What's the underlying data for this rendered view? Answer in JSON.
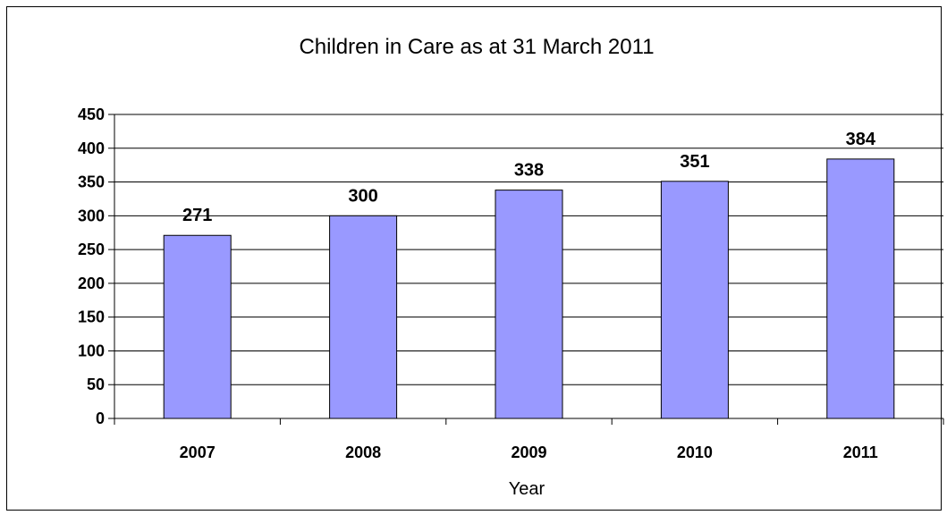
{
  "chart_data": {
    "type": "bar",
    "title": "Children in Care as at 31 March 2011",
    "xlabel": "Year",
    "ylabel": "",
    "categories": [
      "2007",
      "2008",
      "2009",
      "2010",
      "2011"
    ],
    "values": [
      271,
      300,
      338,
      351,
      384
    ],
    "data_labels": [
      "271",
      "300",
      "338",
      "351",
      "384"
    ],
    "y_ticks": [
      "0",
      "50",
      "100",
      "150",
      "200",
      "250",
      "300",
      "350",
      "400",
      "450"
    ],
    "ylim": [
      0,
      450
    ],
    "grid": true,
    "legend": "none",
    "colors": {
      "bar": "#9999ff",
      "bar_stroke": "#000000",
      "grid": "#000000"
    }
  }
}
